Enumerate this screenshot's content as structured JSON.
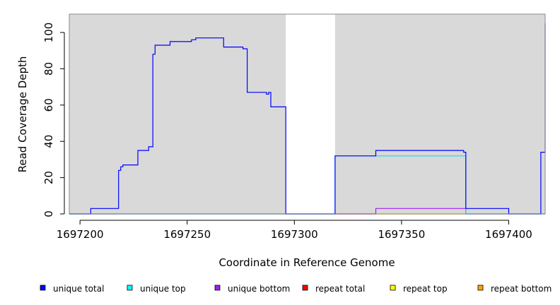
{
  "chart_data": {
    "type": "line",
    "xlabel": "Coordinate in Reference Genome",
    "ylabel": "Read Coverage Depth",
    "xlim": [
      1697195,
      1697417
    ],
    "ylim": [
      0,
      110
    ],
    "x_ticks": [
      1697200,
      1697250,
      1697300,
      1697350,
      1697400
    ],
    "y_ticks": [
      0,
      20,
      40,
      60,
      80,
      100
    ],
    "background_color": "#d9d9d9",
    "highlight_region": [
      1697296,
      1697319
    ],
    "highlight_color": "#ffffff",
    "legend_position": "bottom",
    "series": [
      {
        "name": "unique total",
        "color": "#0000ff",
        "points": [
          [
            1697195,
            0
          ],
          [
            1697205,
            0
          ],
          [
            1697205,
            3
          ],
          [
            1697218,
            3
          ],
          [
            1697218,
            24
          ],
          [
            1697219,
            24
          ],
          [
            1697219,
            26
          ],
          [
            1697220,
            26
          ],
          [
            1697220,
            27
          ],
          [
            1697227,
            27
          ],
          [
            1697227,
            35
          ],
          [
            1697232,
            35
          ],
          [
            1697232,
            37
          ],
          [
            1697234,
            37
          ],
          [
            1697234,
            88
          ],
          [
            1697235,
            88
          ],
          [
            1697235,
            93
          ],
          [
            1697242,
            93
          ],
          [
            1697242,
            95
          ],
          [
            1697252,
            95
          ],
          [
            1697252,
            96
          ],
          [
            1697254,
            96
          ],
          [
            1697254,
            97
          ],
          [
            1697267,
            97
          ],
          [
            1697267,
            92
          ],
          [
            1697276,
            92
          ],
          [
            1697276,
            91
          ],
          [
            1697278,
            91
          ],
          [
            1697278,
            67
          ],
          [
            1697287,
            67
          ],
          [
            1697287,
            66
          ],
          [
            1697288,
            66
          ],
          [
            1697288,
            67
          ],
          [
            1697289,
            67
          ],
          [
            1697289,
            59
          ],
          [
            1697296,
            59
          ],
          [
            1697296,
            0
          ],
          [
            1697319,
            0
          ],
          [
            1697319,
            32
          ],
          [
            1697338,
            32
          ],
          [
            1697338,
            35
          ],
          [
            1697379,
            35
          ],
          [
            1697379,
            34
          ],
          [
            1697380,
            34
          ],
          [
            1697380,
            3
          ],
          [
            1697400,
            3
          ],
          [
            1697400,
            0
          ],
          [
            1697415,
            0
          ],
          [
            1697415,
            34
          ],
          [
            1697417,
            34
          ],
          [
            1697417,
            105
          ]
        ]
      },
      {
        "name": "unique top",
        "color": "#00e5e5",
        "points": [
          [
            1697195,
            0
          ],
          [
            1697319,
            0
          ],
          [
            1697319,
            32
          ],
          [
            1697380,
            32
          ],
          [
            1697380,
            0
          ],
          [
            1697417,
            0
          ]
        ]
      },
      {
        "name": "unique bottom",
        "color": "#a020f0",
        "points": [
          [
            1697195,
            0
          ],
          [
            1697338,
            0
          ],
          [
            1697338,
            3
          ],
          [
            1697380,
            3
          ],
          [
            1697380,
            0
          ],
          [
            1697417,
            0
          ]
        ]
      },
      {
        "name": "repeat total",
        "color": "#ff0000",
        "points": [
          [
            1697319,
            0
          ],
          [
            1697338,
            0
          ]
        ]
      },
      {
        "name": "repeat top",
        "color": "#ffff00",
        "points": [
          [
            1697338,
            0
          ],
          [
            1697380,
            0
          ]
        ]
      },
      {
        "name": "repeat bottom",
        "color": "#ffa500",
        "points": [
          [
            1697338,
            0
          ],
          [
            1697380,
            0
          ]
        ]
      }
    ],
    "baseline_line": {
      "color": "#66cc66",
      "points": [
        [
          1697195,
          0
        ],
        [
          1697296,
          0
        ]
      ]
    },
    "legend": [
      {
        "label": "unique total",
        "color": "#0000ff"
      },
      {
        "label": "unique top",
        "color": "#00ffff"
      },
      {
        "label": "unique bottom",
        "color": "#a020f0"
      },
      {
        "label": "repeat total",
        "color": "#ff0000"
      },
      {
        "label": "repeat top",
        "color": "#ffff00"
      },
      {
        "label": "repeat bottom",
        "color": "#ffa500"
      }
    ]
  }
}
